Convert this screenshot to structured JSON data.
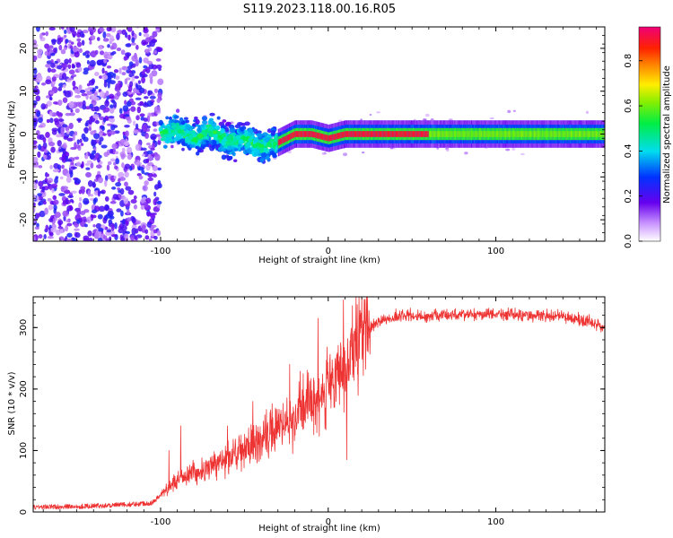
{
  "figure_title": "S119.2023.118.00.16.R05",
  "colors": {
    "snr_line": "#ee3333",
    "axis": "#000000"
  },
  "chart_data": [
    {
      "type": "heatmap",
      "title": "S119.2023.118.00.16.R05",
      "xlabel": "Height of straight line (km)",
      "ylabel": "Frequency (Hz)",
      "xlim": [
        -176,
        165
      ],
      "ylim": [
        -25,
        25
      ],
      "x_ticks": [
        -100,
        0,
        100
      ],
      "x_tick_labels": [
        "-100",
        "0",
        "100"
      ],
      "y_ticks": [
        -20,
        -10,
        0,
        10,
        20
      ],
      "y_tick_labels": [
        "-20",
        "-10",
        "0",
        "10",
        "20"
      ],
      "grid": false,
      "colorbar": {
        "label": "Normalized spectral amplitude",
        "range": [
          0,
          0.95
        ],
        "ticks": [
          0,
          0.2,
          0.4,
          0.6,
          0.8
        ],
        "tick_labels": [
          "0.0",
          "0.2",
          "0.4",
          "0.6",
          "0.8"
        ],
        "colormap": "rainbow (white-purple-blue-cyan-green-yellow-orange-red-magenta)"
      },
      "features": [
        {
          "region": "x -176 to -100",
          "description": "scattered noise over full frequency band, amplitude 0.1-0.3"
        },
        {
          "region": "x -100 to -30",
          "description": "energy concentrated near 0 Hz (about -5 to +5 Hz), amplitude 0.3-0.6"
        },
        {
          "region": "x -30 to 165",
          "description": "narrow tone at ~0 Hz, amplitude up to 0.95"
        }
      ],
      "tone_center_hz": [
        {
          "x": -100,
          "y": 0
        },
        {
          "x": -90,
          "y": 1
        },
        {
          "x": -80,
          "y": -1
        },
        {
          "x": -70,
          "y": 1
        },
        {
          "x": -60,
          "y": -2
        },
        {
          "x": -50,
          "y": -1
        },
        {
          "x": -40,
          "y": -3
        },
        {
          "x": -30,
          "y": -2
        },
        {
          "x": -20,
          "y": 0
        },
        {
          "x": -10,
          "y": 0
        },
        {
          "x": 0,
          "y": -1
        },
        {
          "x": 10,
          "y": 0
        },
        {
          "x": 50,
          "y": 0
        },
        {
          "x": 100,
          "y": 0
        },
        {
          "x": 165,
          "y": 0
        }
      ]
    },
    {
      "type": "line",
      "xlabel": "Height of straight line (km)",
      "ylabel": "SNR (10 * v/v)",
      "xlim": [
        -176,
        165
      ],
      "ylim": [
        0,
        350
      ],
      "x_ticks": [
        -100,
        0,
        100
      ],
      "x_tick_labels": [
        "-100",
        "0",
        "100"
      ],
      "y_ticks": [
        0,
        100,
        200,
        300
      ],
      "y_tick_labels": [
        "0",
        "100",
        "200",
        "300"
      ],
      "grid": false,
      "series": [
        {
          "color": "#ee3333",
          "envelope": [
            {
              "x": -176,
              "y": 8
            },
            {
              "x": -150,
              "y": 9
            },
            {
              "x": -120,
              "y": 12
            },
            {
              "x": -105,
              "y": 15
            },
            {
              "x": -95,
              "y": 40
            },
            {
              "x": -85,
              "y": 60
            },
            {
              "x": -75,
              "y": 65
            },
            {
              "x": -60,
              "y": 90
            },
            {
              "x": -40,
              "y": 115
            },
            {
              "x": -25,
              "y": 150
            },
            {
              "x": -15,
              "y": 170
            },
            {
              "x": -5,
              "y": 190
            },
            {
              "x": 5,
              "y": 210
            },
            {
              "x": 15,
              "y": 250
            },
            {
              "x": 20,
              "y": 290
            },
            {
              "x": 30,
              "y": 310
            },
            {
              "x": 45,
              "y": 320
            },
            {
              "x": 60,
              "y": 318
            },
            {
              "x": 80,
              "y": 322
            },
            {
              "x": 100,
              "y": 322
            },
            {
              "x": 120,
              "y": 320
            },
            {
              "x": 140,
              "y": 318
            },
            {
              "x": 155,
              "y": 310
            },
            {
              "x": 165,
              "y": 300
            }
          ],
          "peaks": [
            {
              "x": -95,
              "y": 100
            },
            {
              "x": -88,
              "y": 140
            },
            {
              "x": -60,
              "y": 140
            },
            {
              "x": -45,
              "y": 180
            },
            {
              "x": -23,
              "y": 240
            },
            {
              "x": -6,
              "y": 315
            },
            {
              "x": 9,
              "y": 345
            },
            {
              "x": 11,
              "y": 85
            }
          ]
        }
      ]
    }
  ]
}
